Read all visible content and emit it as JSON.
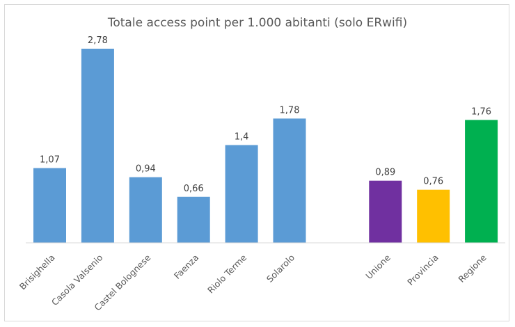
{
  "chart_data": {
    "type": "bar",
    "title": "Totale access point per 1.000 abitanti (solo ERwifi)",
    "xlabel": "",
    "ylabel": "",
    "ylim": [
      0,
      2.9
    ],
    "grid": false,
    "legend": "none",
    "categories": [
      "Brisighella",
      "Casola Valsenio",
      "Castel Bolognese",
      "Faenza",
      "Riolo Terme",
      "Solarolo",
      "",
      "Unione",
      "Provincia",
      "Regione"
    ],
    "values": [
      1.07,
      2.78,
      0.94,
      0.66,
      1.4,
      1.78,
      null,
      0.89,
      0.76,
      1.76
    ],
    "value_labels": [
      "1,07",
      "2,78",
      "0,94",
      "0,66",
      "1,4",
      "1,78",
      "",
      "0,89",
      "0,76",
      "1,76"
    ],
    "colors": [
      "#5b9bd5",
      "#5b9bd5",
      "#5b9bd5",
      "#5b9bd5",
      "#5b9bd5",
      "#5b9bd5",
      "",
      "#7030a0",
      "#ffc000",
      "#00b050"
    ]
  }
}
